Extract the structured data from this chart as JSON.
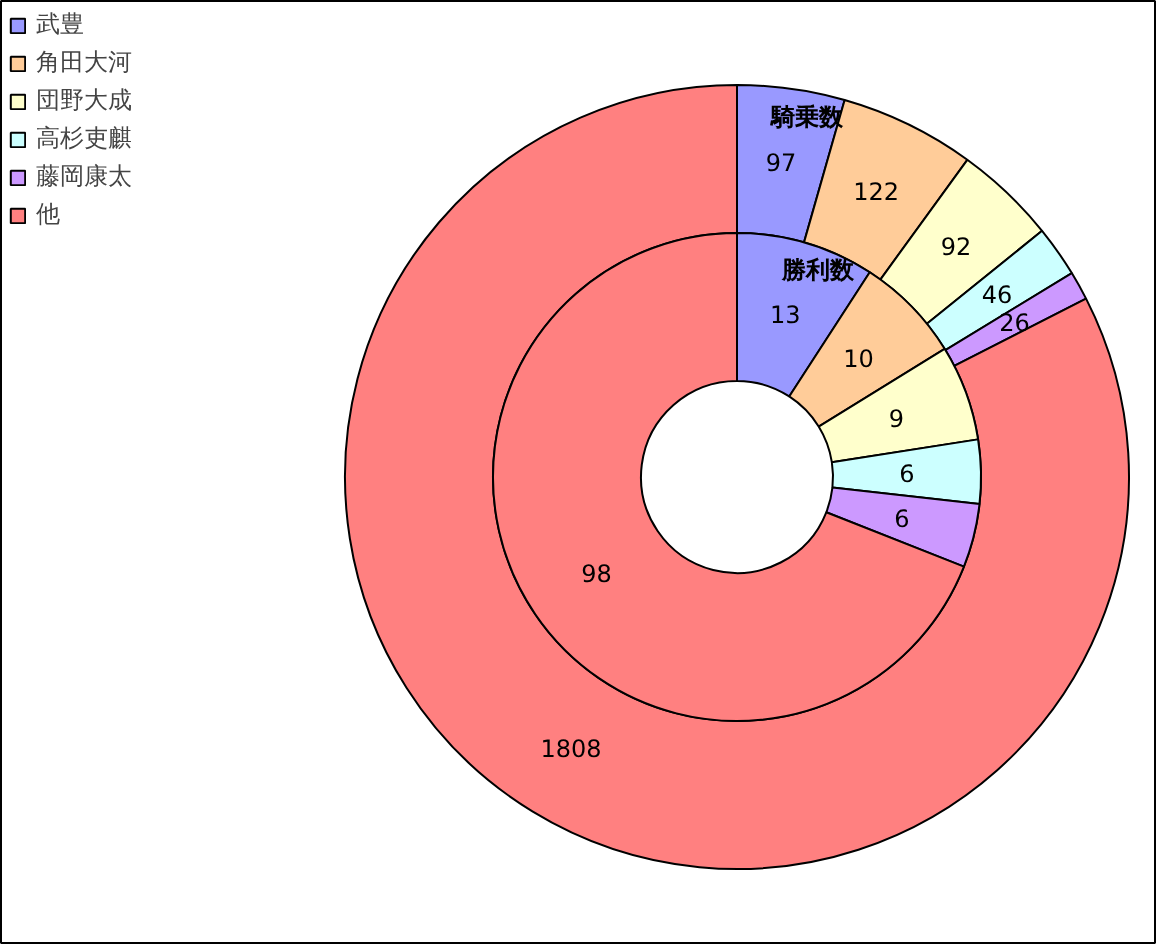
{
  "chart_data": {
    "type": "donut",
    "categories": [
      "武豊",
      "角田大河",
      "団野大成",
      "高杉吏麒",
      "藤岡康太",
      "他"
    ],
    "colors": [
      "#9999ff",
      "#ffcc99",
      "#ffffcc",
      "#ccffff",
      "#cc99ff",
      "#ff8080"
    ],
    "data_labels": true,
    "legend": "top left",
    "series": [
      {
        "name": "騎乗数",
        "values": [
          97,
          122,
          92,
          46,
          26,
          1808
        ]
      },
      {
        "name": "勝利数",
        "values": [
          13,
          10,
          9,
          6,
          6,
          98
        ]
      }
    ]
  }
}
